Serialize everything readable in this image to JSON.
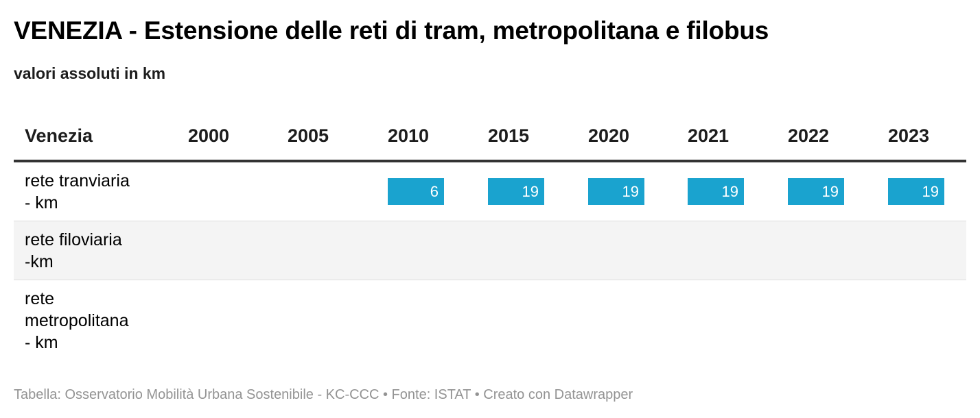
{
  "title": "VENEZIA - Estensione delle reti di tram, metropolitana e filobus",
  "subtitle": "valori assoluti in km",
  "footer": "Tabella: Osservatorio Mobilità Urbana Sostenibile - KC-CCC • Fonte: ISTAT • Creato con Datawrapper",
  "colors": {
    "bar": "#1aa3cf",
    "header_rule": "#333333",
    "alt_row": "#f4f4f4",
    "footer_text": "#939393"
  },
  "chart_data": {
    "type": "table",
    "columns": [
      "Venezia",
      "2000",
      "2005",
      "2010",
      "2015",
      "2020",
      "2021",
      "2022",
      "2023"
    ],
    "rows": [
      {
        "label": "rete tranviaria\n- km",
        "values": [
          null,
          null,
          6,
          19,
          19,
          19,
          19,
          19
        ]
      },
      {
        "label": "rete filoviaria\n-km",
        "values": [
          null,
          null,
          null,
          null,
          null,
          null,
          null,
          null
        ]
      },
      {
        "label": "rete\nmetropolitana\n- km",
        "values": [
          null,
          null,
          null,
          null,
          null,
          null,
          null,
          null
        ]
      }
    ]
  }
}
